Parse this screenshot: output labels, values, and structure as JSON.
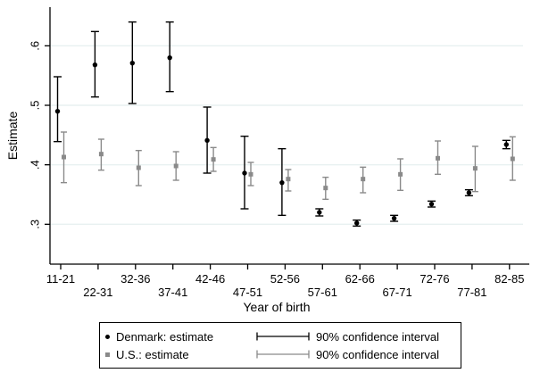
{
  "chart_data": {
    "type": "scatter",
    "subtype": "error-bar",
    "title": "",
    "xlabel": "Year of birth",
    "ylabel": "Estimate",
    "categories": [
      "11-21",
      "22-31",
      "32-36",
      "37-41",
      "42-46",
      "47-51",
      "52-56",
      "57-61",
      "62-66",
      "67-71",
      "72-76",
      "77-81",
      "82-85"
    ],
    "yticks": [
      0.3,
      0.4,
      0.5,
      0.6
    ],
    "ytick_labels": [
      ".3",
      ".4",
      ".5",
      ".6"
    ],
    "ylim": [
      0.233,
      0.665
    ],
    "grid": true,
    "legend_position": "bottom",
    "series": [
      {
        "name": "Denmark: estimate",
        "ci_label": "90% confidence interval",
        "ci_level": "90%",
        "color": "#000000",
        "marker": "circle",
        "values": [
          0.49,
          0.568,
          0.571,
          0.58,
          0.441,
          0.386,
          0.37,
          0.32,
          0.302,
          0.31,
          0.334,
          0.353,
          0.434
        ],
        "ci_low": [
          0.439,
          0.514,
          0.503,
          0.523,
          0.386,
          0.326,
          0.315,
          0.314,
          0.297,
          0.305,
          0.329,
          0.348,
          0.427
        ],
        "ci_high": [
          0.548,
          0.624,
          0.64,
          0.64,
          0.497,
          0.448,
          0.427,
          0.326,
          0.307,
          0.315,
          0.339,
          0.358,
          0.441
        ]
      },
      {
        "name": "U.S.: estimate",
        "ci_label": "90% confidence interval",
        "ci_level": "90%",
        "color": "#8a8a8a",
        "marker": "square",
        "values": [
          0.413,
          0.418,
          0.395,
          0.398,
          0.409,
          0.384,
          0.376,
          0.361,
          0.376,
          0.384,
          0.411,
          0.394,
          0.41
        ],
        "ci_low": [
          0.37,
          0.391,
          0.365,
          0.374,
          0.389,
          0.365,
          0.356,
          0.342,
          0.353,
          0.357,
          0.384,
          0.355,
          0.374
        ],
        "ci_high": [
          0.455,
          0.443,
          0.424,
          0.422,
          0.429,
          0.404,
          0.392,
          0.379,
          0.396,
          0.41,
          0.44,
          0.431,
          0.447
        ]
      }
    ]
  },
  "colors": {
    "denmark": "#000000",
    "us": "#8a8a8a",
    "gridline": "#e8f1f1",
    "axis": "#000000",
    "background": "#ffffff"
  }
}
